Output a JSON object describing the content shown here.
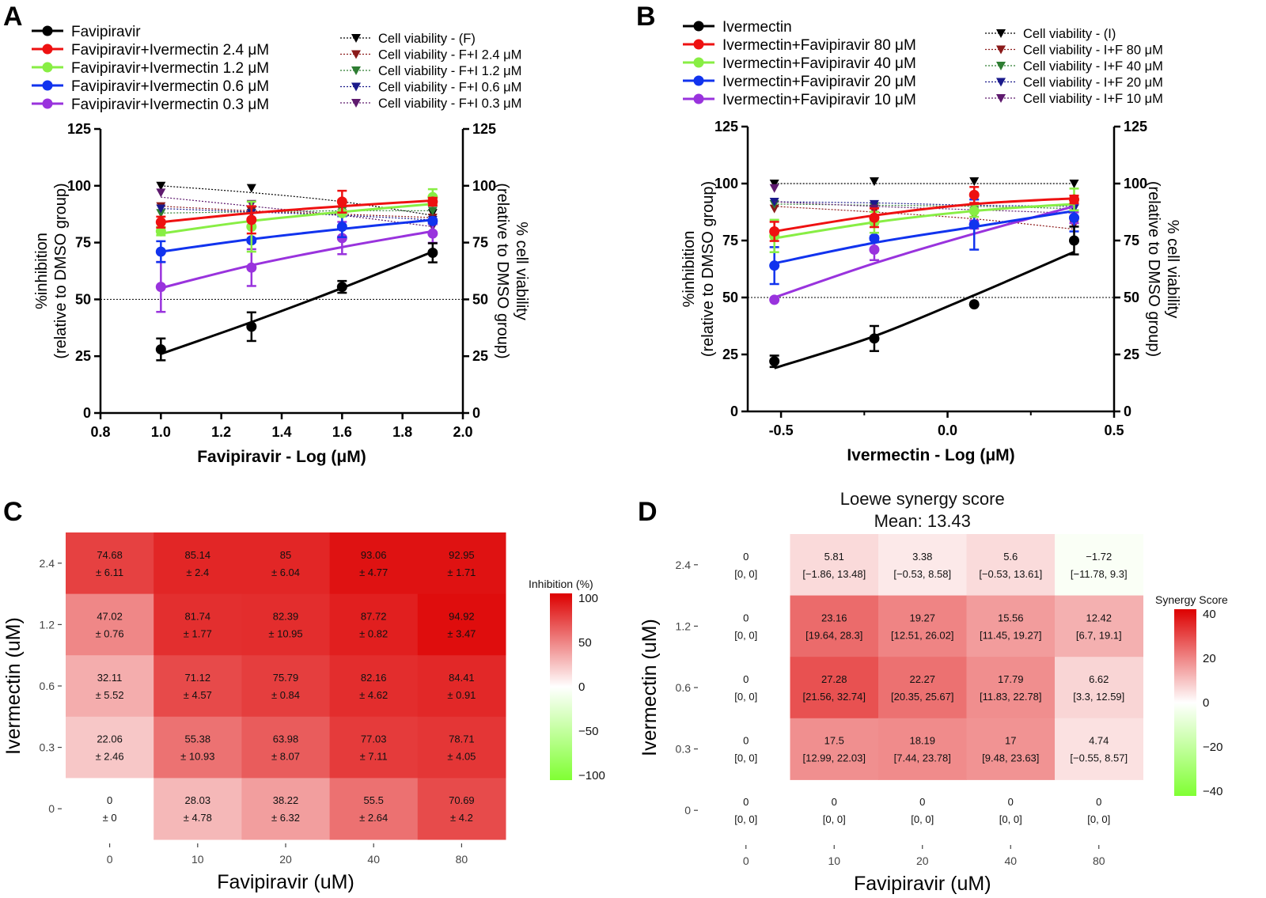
{
  "colors": {
    "favi": "#000000",
    "c24": "#ee1111",
    "c12": "#88ee44",
    "c06": "#1133ee",
    "c03": "#9933dd",
    "cvF": "#000000",
    "cv24": "#8b1a1a",
    "cv12": "#2e7d32",
    "cv06": "#1a1a8b",
    "cv03": "#5e1a6e"
  },
  "chart_data": [
    {
      "panel": "A",
      "type": "line",
      "xlabel": "Favipiravir - Log (μM)",
      "ylabel": [
        "%inhibition",
        "(relative to DMSO group)"
      ],
      "y2label": [
        "% cell viability",
        "(relative to DMSO group)"
      ],
      "xlim": [
        0.8,
        2.0
      ],
      "ylim": [
        0,
        125
      ],
      "y2lim": [
        0,
        125
      ],
      "xticks": [
        "0.8",
        "1.0",
        "1.2",
        "1.4",
        "1.6",
        "1.8",
        "2.0"
      ],
      "yticks": [
        "0",
        "25",
        "50",
        "75",
        "100",
        "125"
      ],
      "reference_line": 50,
      "x": [
        1.0,
        1.3,
        1.6,
        1.9
      ],
      "series": [
        {
          "name": "Favipiravir",
          "color": "favi",
          "marker": "circle",
          "values": [
            28,
            38,
            55.5,
            70.5
          ],
          "err": [
            4.8,
            6.3,
            2.6,
            4.2
          ],
          "fit": [
            26,
            40,
            55,
            71
          ]
        },
        {
          "name": "Favipiravir+Ivermectin 2.4 μM",
          "color": "c24",
          "marker": "circle",
          "values": [
            84,
            85,
            93,
            93
          ],
          "err": [
            2.4,
            6.0,
            4.8,
            1.7
          ],
          "fit": [
            84,
            88,
            91,
            93.5
          ]
        },
        {
          "name": "Favipiravir+Ivermectin 1.2 μM",
          "color": "c12",
          "marker": "circle",
          "values": [
            80,
            82,
            88,
            95
          ],
          "err": [
            1.8,
            11,
            0.8,
            3.5
          ],
          "fit": [
            79,
            84.5,
            88.5,
            92
          ]
        },
        {
          "name": "Favipiravir+Ivermectin 0.6 μM",
          "color": "c06",
          "marker": "circle",
          "values": [
            71,
            76,
            82,
            84.5
          ],
          "err": [
            4.6,
            0.8,
            4.6,
            0.9
          ],
          "fit": [
            71,
            76.5,
            81,
            85
          ]
        },
        {
          "name": "Favipiravir+Ivermectin 0.3 μM",
          "color": "c03",
          "marker": "circle",
          "values": [
            55.5,
            64,
            77,
            79
          ],
          "err": [
            11,
            8.1,
            7.1,
            4.1
          ],
          "fit": [
            55,
            65,
            73,
            80
          ]
        }
      ],
      "viability": [
        {
          "name": "Cell viability - (F)",
          "color": "cvF",
          "values": [
            100,
            99,
            92,
            88
          ],
          "fit": [
            100,
            97,
            93,
            87
          ]
        },
        {
          "name": "Cell viability - F+I 2.4 μM",
          "color": "cv24",
          "values": [
            91,
            89,
            87,
            86
          ],
          "fit": [
            91,
            89,
            87.5,
            86
          ]
        },
        {
          "name": "Cell viability - F+I 1.2 μM",
          "color": "cv12",
          "values": [
            88,
            88,
            89,
            89
          ],
          "fit": [
            88,
            88.5,
            89,
            89
          ]
        },
        {
          "name": "Cell viability - F+I 0.6 μM",
          "color": "cv06",
          "values": [
            90,
            88,
            87,
            85
          ],
          "fit": [
            90,
            88.5,
            87,
            85
          ]
        },
        {
          "name": "Cell viability - F+I 0.3 μM",
          "color": "cv03",
          "values": [
            97,
            92,
            88,
            82
          ],
          "fit": [
            95,
            91,
            87,
            82
          ]
        }
      ]
    },
    {
      "panel": "B",
      "type": "line",
      "xlabel": "Ivermectin - Log (μM)",
      "ylabel": [
        "%inhibition",
        "(relative to DMSO group)"
      ],
      "y2label": [
        "% cell viability",
        "(relative to DMSO group)"
      ],
      "xlim": [
        -0.6,
        0.5
      ],
      "ylim": [
        0,
        125
      ],
      "y2lim": [
        0,
        125
      ],
      "xticks": [
        "-0.5",
        "0.0",
        "0.5"
      ],
      "xtick_values": [
        -0.5,
        0.0,
        0.5
      ],
      "yticks": [
        "0",
        "25",
        "50",
        "75",
        "100",
        "125"
      ],
      "reference_line": 50,
      "x": [
        -0.52,
        -0.22,
        0.08,
        0.38
      ],
      "series": [
        {
          "name": "Ivermectin",
          "color": "favi",
          "marker": "circle",
          "values": [
            22,
            32,
            47,
            75
          ],
          "err": [
            2.5,
            5.5,
            0,
            6.1
          ],
          "fit": [
            19,
            33,
            51,
            70
          ]
        },
        {
          "name": "Ivermectin+Favipiravir 80 μM",
          "color": "c24",
          "marker": "circle",
          "values": [
            79,
            85,
            95,
            93
          ],
          "err": [
            4.2,
            4.1,
            3.5,
            1.7
          ],
          "fit": [
            79,
            86,
            91,
            93.5
          ]
        },
        {
          "name": "Ivermectin+Favipiravir 40 μM",
          "color": "c12",
          "marker": "circle",
          "values": [
            77,
            83,
            88,
            93
          ],
          "err": [
            7.1,
            4.6,
            2.6,
            4.8
          ],
          "fit": [
            76,
            83,
            88,
            91
          ]
        },
        {
          "name": "Ivermectin+Favipiravir 20 μM",
          "color": "c06",
          "marker": "circle",
          "values": [
            64,
            76,
            82,
            85
          ],
          "err": [
            8.1,
            0.8,
            11,
            6.0
          ],
          "fit": [
            65,
            74,
            81,
            88
          ]
        },
        {
          "name": "Ivermectin+Favipiravir 10 μM",
          "color": "c03",
          "marker": "circle",
          "values": [
            49,
            71,
            82,
            85
          ],
          "err": [
            0,
            4.6,
            1.8,
            2.4
          ],
          "fit": [
            50,
            65,
            78,
            90
          ]
        }
      ],
      "viability": [
        {
          "name": "Cell viability - (I)",
          "color": "cvF",
          "values": [
            100,
            101,
            101,
            100
          ],
          "fit": [
            100,
            100,
            100,
            100
          ]
        },
        {
          "name": "Cell viability - I+F 80 μM",
          "color": "cv24",
          "values": [
            89,
            88,
            86,
            82
          ],
          "fit": [
            90,
            87.5,
            84.5,
            80
          ]
        },
        {
          "name": "Cell viability - I+F 40 μM",
          "color": "cv12",
          "values": [
            91,
            90,
            90,
            89
          ],
          "fit": [
            91,
            90.5,
            90,
            89
          ]
        },
        {
          "name": "Cell viability - I+F 20 μM",
          "color": "cv06",
          "values": [
            92,
            91,
            90,
            89
          ],
          "fit": [
            92,
            91.5,
            90.5,
            90
          ]
        },
        {
          "name": "Cell viability - I+F 10 μM",
          "color": "cv03",
          "values": [
            98,
            89,
            88,
            87
          ],
          "fit": [
            92,
            90,
            88.5,
            87
          ]
        }
      ]
    },
    {
      "panel": "C",
      "type": "heatmap",
      "xlabel": "Favipiravir (uM)",
      "ylabel": "Ivermectin (uM)",
      "xcategories": [
        "0",
        "10",
        "20",
        "40",
        "80"
      ],
      "ycategories": [
        "2.4",
        "1.2",
        "0.6",
        "0.3",
        "0"
      ],
      "colorbar": {
        "title": "Inhibition (%)",
        "ticks": [
          "100",
          "50",
          "0",
          "−50",
          "−100"
        ],
        "range": [
          -100,
          100
        ]
      },
      "values": [
        [
          74.68,
          85.14,
          85,
          93.06,
          92.95
        ],
        [
          47.02,
          81.74,
          82.39,
          87.72,
          94.92
        ],
        [
          32.11,
          71.12,
          75.79,
          82.16,
          84.41
        ],
        [
          22.06,
          55.38,
          63.98,
          77.03,
          78.71
        ],
        [
          0,
          28.03,
          38.22,
          55.5,
          70.69
        ]
      ],
      "values_text": [
        [
          "74.68",
          "85.14",
          "85",
          "93.06",
          "92.95"
        ],
        [
          "47.02",
          "81.74",
          "82.39",
          "87.72",
          "94.92"
        ],
        [
          "32.11",
          "71.12",
          "75.79",
          "82.16",
          "84.41"
        ],
        [
          "22.06",
          "55.38",
          "63.98",
          "77.03",
          "78.71"
        ],
        [
          "0",
          "28.03",
          "38.22",
          "55.5",
          "70.69"
        ]
      ],
      "sd_text": [
        [
          "± 6.11",
          "± 2.4",
          "± 6.04",
          "± 4.77",
          "± 1.71"
        ],
        [
          "± 0.76",
          "± 1.77",
          "± 10.95",
          "± 0.82",
          "± 3.47"
        ],
        [
          "± 5.52",
          "± 4.57",
          "± 0.84",
          "± 4.62",
          "± 0.91"
        ],
        [
          "± 2.46",
          "± 10.93",
          "± 8.07",
          "± 7.11",
          "± 4.05"
        ],
        [
          "± 0",
          "± 4.78",
          "± 6.32",
          "± 2.64",
          "± 4.2"
        ]
      ]
    },
    {
      "panel": "D",
      "type": "heatmap",
      "title": "Loewe synergy score",
      "subtitle": "Mean: 13.43",
      "xlabel": "Favipiravir (uM)",
      "ylabel": "Ivermectin (uM)",
      "xcategories": [
        "0",
        "10",
        "20",
        "40",
        "80"
      ],
      "ycategories": [
        "2.4",
        "1.2",
        "0.6",
        "0.3",
        "0"
      ],
      "colorbar": {
        "title": "Synergy Score",
        "ticks": [
          "40",
          "20",
          "0",
          "−20",
          "−40"
        ],
        "range": [
          -40,
          40
        ]
      },
      "values": [
        [
          0,
          5.81,
          3.38,
          5.6,
          -1.72
        ],
        [
          0,
          23.16,
          19.27,
          15.56,
          12.42
        ],
        [
          0,
          27.28,
          22.27,
          17.79,
          6.62
        ],
        [
          0,
          17.5,
          18.19,
          17,
          4.74
        ],
        [
          0,
          0,
          0,
          0,
          0
        ]
      ],
      "values_text": [
        [
          "0",
          "5.81",
          "3.38",
          "5.6",
          "−1.72"
        ],
        [
          "0",
          "23.16",
          "19.27",
          "15.56",
          "12.42"
        ],
        [
          "0",
          "27.28",
          "22.27",
          "17.79",
          "6.62"
        ],
        [
          "0",
          "17.5",
          "18.19",
          "17",
          "4.74"
        ],
        [
          "0",
          "0",
          "0",
          "0",
          "0"
        ]
      ],
      "ci_text": [
        [
          "[0, 0]",
          "[−1.86, 13.48]",
          "[−0.53, 8.58]",
          "[−0.53, 13.61]",
          "[−11.78, 9.3]"
        ],
        [
          "[0, 0]",
          "[19.64, 28.3]",
          "[12.51, 26.02]",
          "[11.45, 19.27]",
          "[6.7, 19.1]"
        ],
        [
          "[0, 0]",
          "[21.56, 32.74]",
          "[20.35, 25.67]",
          "[11.83, 22.78]",
          "[3.3, 12.59]"
        ],
        [
          "[0, 0]",
          "[12.99, 22.03]",
          "[7.44, 23.78]",
          "[9.48, 23.63]",
          "[−0.55, 8.57]"
        ],
        [
          "[0, 0]",
          "[0, 0]",
          "[0, 0]",
          "[0, 0]",
          "[0, 0]"
        ]
      ]
    }
  ]
}
